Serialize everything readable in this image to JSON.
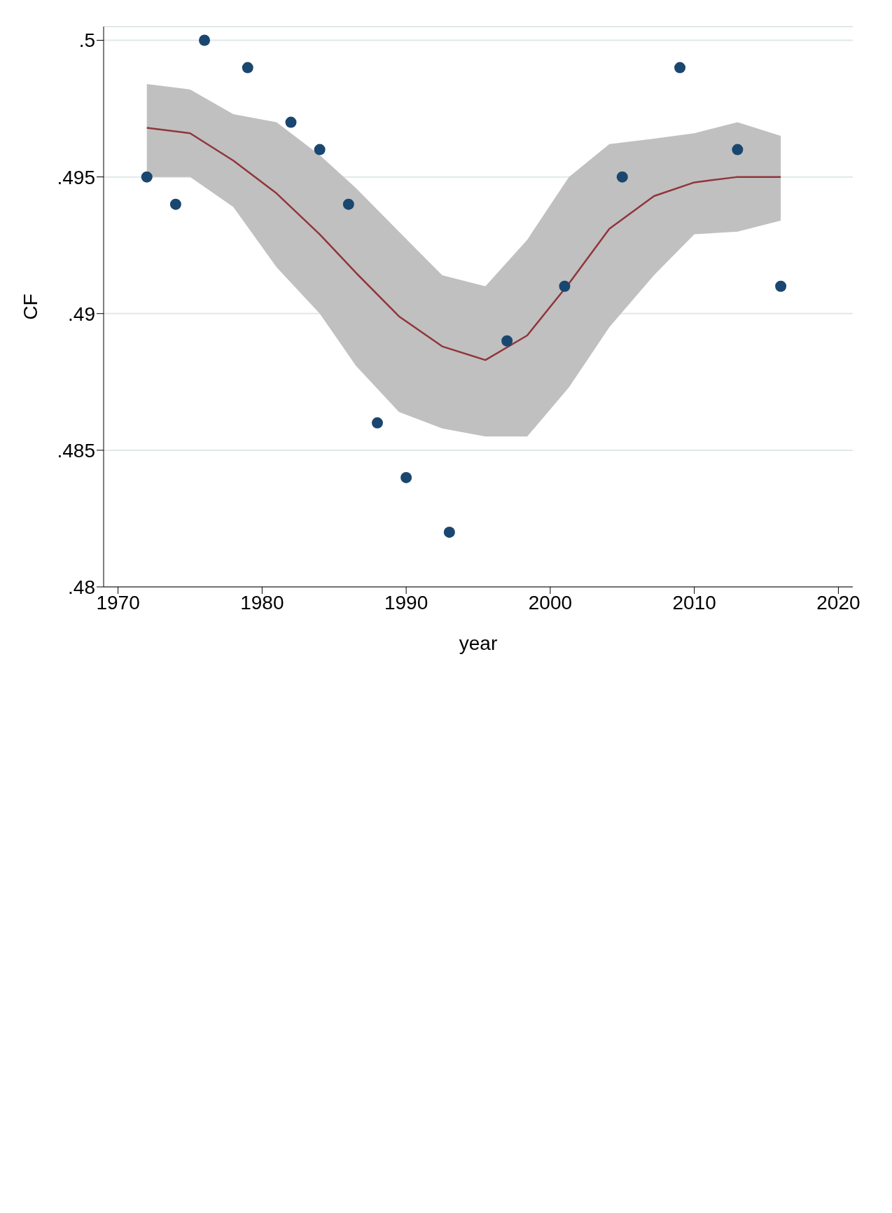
{
  "chart_data": {
    "type": "scatter",
    "xlabel": "year",
    "ylabel": "CF",
    "xlim": [
      1969,
      2021
    ],
    "xticks": [
      1970,
      1980,
      1990,
      2000,
      2010,
      2020
    ],
    "ylim": [
      0.48,
      0.5005
    ],
    "yticks": [
      {
        "value": 0.48,
        "label": ".48"
      },
      {
        "value": 0.485,
        "label": ".485"
      },
      {
        "value": 0.49,
        "label": ".49"
      },
      {
        "value": 0.495,
        "label": ".495"
      },
      {
        "value": 0.5,
        "label": ".5"
      }
    ],
    "grid": "y",
    "series": [
      {
        "type": "line",
        "color": "#90353b",
        "x": [
          1972,
          1975,
          1978,
          1981,
          1984,
          1986.5,
          1989.5,
          1992.5,
          1995.5,
          1998.4,
          2001.3,
          2004.1,
          2007.2,
          2010,
          2013,
          2016
        ],
        "values": [
          0.4968,
          0.4966,
          0.4956,
          0.4944,
          0.4929,
          0.4915,
          0.4899,
          0.4888,
          0.4883,
          0.4892,
          0.4911,
          0.4931,
          0.4943,
          0.4948,
          0.495,
          0.495
        ],
        "lower": [
          0.495,
          0.495,
          0.4939,
          0.4917,
          0.49,
          0.4881,
          0.4864,
          0.4858,
          0.4855,
          0.4855,
          0.4873,
          0.4895,
          0.4914,
          0.4929,
          0.493,
          0.4934
        ],
        "upper": [
          0.4984,
          0.4982,
          0.4973,
          0.497,
          0.4958,
          0.4946,
          0.493,
          0.4914,
          0.491,
          0.4927,
          0.495,
          0.4962,
          0.4964,
          0.4966,
          0.497,
          0.4965
        ]
      },
      {
        "color": "#1a476f",
        "marker": "circle",
        "x": [
          1972,
          1974,
          1976,
          1979,
          1982,
          1984,
          1986,
          1988,
          1990,
          1993,
          1997,
          2001,
          2005,
          2009,
          2013,
          2016
        ],
        "values": [
          0.495,
          0.494,
          0.5,
          0.499,
          0.497,
          0.496,
          0.494,
          0.486,
          0.484,
          0.482,
          0.489,
          0.491,
          0.495,
          0.499,
          0.496,
          0.491
        ]
      }
    ]
  }
}
